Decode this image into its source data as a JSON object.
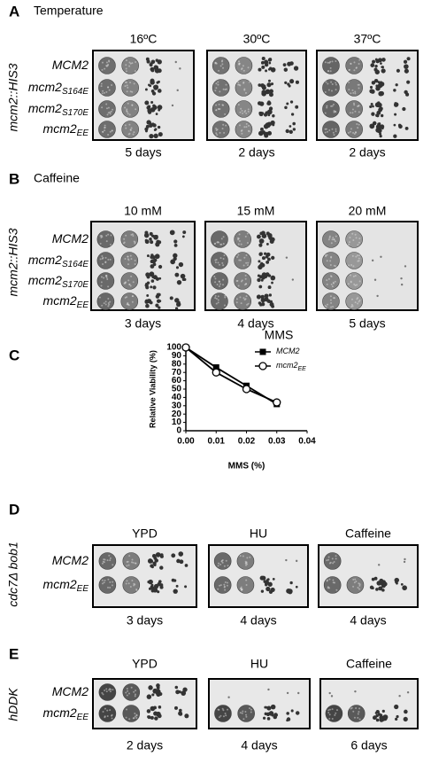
{
  "panels": [
    {
      "label": "A",
      "title": "Temperature",
      "side_label": "mcm2::HIS3",
      "strains": [
        {
          "text": "MCM2"
        },
        {
          "text": "mcm2",
          "sub": "S164E"
        },
        {
          "text": "mcm2",
          "sub": "S170E"
        },
        {
          "text": "mcm2",
          "sub": "EE"
        }
      ],
      "conditions": [
        {
          "name": "16ºC",
          "days": "5 days"
        },
        {
          "name": "30ºC",
          "days": "2 days"
        },
        {
          "name": "37ºC",
          "days": "2 days"
        }
      ]
    },
    {
      "label": "B",
      "title": "Caffeine",
      "side_label": "mcm2::HIS3",
      "strains": [
        {
          "text": "MCM2"
        },
        {
          "text": "mcm2",
          "sub": "S164E"
        },
        {
          "text": "mcm2",
          "sub": "S170E"
        },
        {
          "text": "mcm2",
          "sub": "EE"
        }
      ],
      "conditions": [
        {
          "name": "10 mM",
          "days": "3 days"
        },
        {
          "name": "15 mM",
          "days": "4 days"
        },
        {
          "name": "20 mM",
          "days": "5 days"
        }
      ]
    },
    {
      "label": "D",
      "side_label": "cdc7Δ bob1",
      "strains": [
        {
          "text": "MCM2"
        },
        {
          "text": "mcm2",
          "sub": "EE"
        }
      ],
      "conditions": [
        {
          "name": "YPD",
          "days": "3 days"
        },
        {
          "name": "HU",
          "days": "4 days"
        },
        {
          "name": "Caffeine",
          "days": "4 days"
        }
      ]
    },
    {
      "label": "E",
      "side_label": "hDDK",
      "strains": [
        {
          "text": "MCM2"
        },
        {
          "text": "mcm2",
          "sub": "EE"
        }
      ],
      "conditions": [
        {
          "name": "YPD",
          "days": "2 days"
        },
        {
          "name": "HU",
          "days": "4 days"
        },
        {
          "name": "Caffeine",
          "days": "6 days"
        }
      ]
    }
  ],
  "panel_c_label": "C",
  "chart_data": {
    "type": "line",
    "title": "MMS",
    "x_label": "MMS (%)",
    "y_label": "Relative Viability (%)",
    "xlim": [
      0,
      0.04
    ],
    "xticks": [
      {
        "value": 0,
        "label": "0.00"
      },
      {
        "value": 0.01,
        "label": "0.01"
      },
      {
        "value": 0.02,
        "label": "0.02"
      },
      {
        "value": 0.03,
        "label": "0.03"
      },
      {
        "value": 0.04,
        "label": "0.04"
      }
    ],
    "ylim": [
      0,
      100
    ],
    "yticks": [
      0,
      10,
      20,
      30,
      40,
      50,
      60,
      70,
      80,
      90,
      100
    ],
    "legend": "upper right",
    "series": [
      {
        "name": "MCM2",
        "color": "#000000",
        "marker": "square",
        "x": [
          0,
          0.01,
          0.02,
          0.03
        ],
        "values": [
          100,
          76,
          54,
          32
        ]
      },
      {
        "name": "mcm2",
        "name_subscript": "EE",
        "color": "#000000",
        "marker": "circle-open",
        "x": [
          0,
          0.01,
          0.02,
          0.03
        ],
        "values": [
          100,
          70,
          50,
          34
        ]
      }
    ]
  }
}
